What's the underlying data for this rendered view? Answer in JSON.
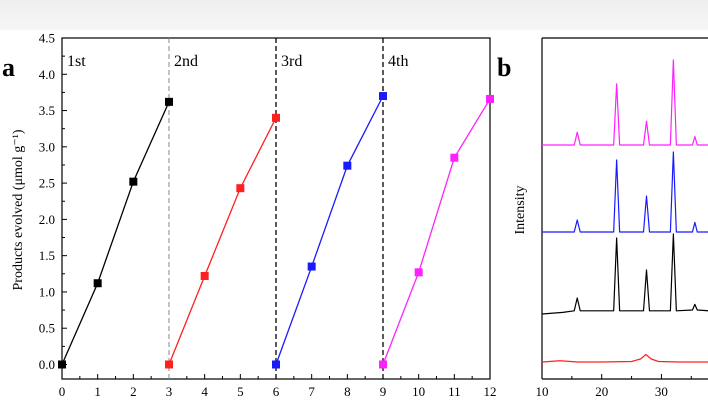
{
  "chart_data": [
    {
      "panel": "a",
      "type": "line",
      "ylabel": "Products evolved (μmol g⁻¹)",
      "xlim": [
        0,
        12
      ],
      "ylim": [
        -0.2,
        4.5
      ],
      "x_ticks": [
        "0",
        "1",
        "2",
        "3",
        "4",
        "5",
        "6",
        "7",
        "8",
        "9",
        "10",
        "11",
        "12"
      ],
      "y_ticks": [
        "0.0",
        "0.5",
        "1.0",
        "1.5",
        "2.0",
        "2.5",
        "3.0",
        "3.5",
        "4.0",
        "4.5"
      ],
      "cycle_boundaries": [
        3,
        6,
        9
      ],
      "cycle_labels": [
        "1st",
        "2nd",
        "3rd",
        "4th"
      ],
      "series": [
        {
          "color": "#000000",
          "x": [
            0,
            1,
            2,
            3
          ],
          "y": [
            0.0,
            1.12,
            2.52,
            3.62
          ]
        },
        {
          "color": "#ff2020",
          "x": [
            3,
            4,
            5,
            6
          ],
          "y": [
            0.0,
            1.22,
            2.43,
            3.4
          ]
        },
        {
          "color": "#1a1aff",
          "x": [
            6,
            7,
            8,
            9
          ],
          "y": [
            0.0,
            1.35,
            2.74,
            3.7
          ]
        },
        {
          "color": "#ff20ff",
          "x": [
            9,
            10,
            11,
            12
          ],
          "y": [
            0.0,
            1.27,
            2.85,
            3.66
          ]
        }
      ]
    },
    {
      "panel": "b",
      "type": "line",
      "ylabel": "Intensity",
      "xlim": [
        10,
        40
      ],
      "x_ticks": [
        "10",
        "20",
        "30"
      ],
      "series": [
        {
          "color": "#ff2020",
          "x": [
            10,
            13,
            16,
            20,
            25,
            26.5,
            27.4,
            28.3,
            29.5,
            33,
            40
          ],
          "y": [
            0.0,
            0.05,
            0.0,
            0.0,
            0.02,
            0.12,
            0.3,
            0.12,
            0.02,
            0.0,
            0.0
          ]
        },
        {
          "color": "#000000",
          "x": [
            10,
            13.5,
            15.4,
            15.9,
            16.4,
            22.0,
            22.5,
            23.0,
            27.0,
            27.5,
            28.0,
            31.5,
            32.0,
            32.5,
            35.2,
            35.6,
            36.0,
            38
          ],
          "y": [
            0.0,
            0.02,
            0.04,
            0.2,
            0.04,
            0.04,
            0.95,
            0.04,
            0.04,
            0.55,
            0.04,
            0.04,
            1.0,
            0.04,
            0.05,
            0.12,
            0.05,
            0.04
          ]
        },
        {
          "color": "#1a1aff",
          "x": [
            10,
            15.4,
            15.9,
            16.4,
            22.0,
            22.5,
            23.0,
            27.0,
            27.5,
            28.0,
            31.5,
            32.0,
            32.5,
            35.2,
            35.6,
            36.0,
            38
          ],
          "y": [
            0.0,
            0.0,
            0.15,
            0.0,
            0.0,
            0.9,
            0.0,
            0.0,
            0.45,
            0.0,
            0.0,
            1.0,
            0.0,
            0.0,
            0.12,
            0.0,
            0.0
          ]
        },
        {
          "color": "#ff20ff",
          "x": [
            10,
            15.4,
            15.9,
            16.4,
            22.0,
            22.5,
            23.0,
            27.0,
            27.5,
            28.0,
            31.5,
            32.0,
            32.5,
            35.2,
            35.6,
            36.0,
            38
          ],
          "y": [
            0.0,
            0.0,
            0.15,
            0.0,
            0.0,
            0.72,
            0.0,
            0.0,
            0.28,
            0.0,
            0.0,
            1.0,
            0.0,
            0.0,
            0.1,
            0.0,
            0.0
          ]
        }
      ]
    }
  ]
}
